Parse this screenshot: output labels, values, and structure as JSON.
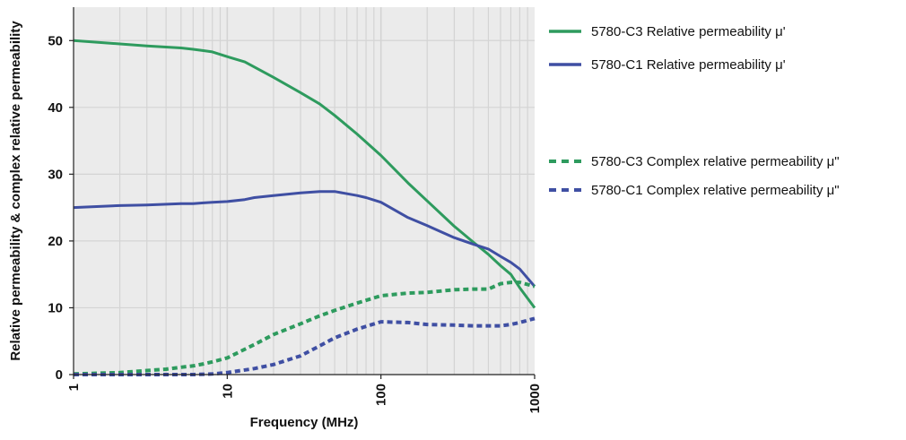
{
  "chart_data": {
    "type": "line",
    "title": "",
    "xlabel": "Frequency (MHz)",
    "ylabel": "Relative permeability & complex relative permeability",
    "xscale": "log",
    "xlim": [
      1,
      1000
    ],
    "ylim": [
      0,
      55
    ],
    "xticks": [
      1,
      10,
      100,
      1000
    ],
    "xtick_labels": [
      "1",
      "10",
      "100",
      "1000"
    ],
    "yticks": [
      0,
      10,
      20,
      30,
      40,
      50
    ],
    "ytick_labels": [
      "0",
      "10",
      "20",
      "30",
      "40",
      "50"
    ],
    "grid": true,
    "legend_position": "right",
    "colors": {
      "plot_background": "#ebebeb",
      "grid": "#d4d4d4",
      "c3": "#2e9b5e",
      "c1": "#3f4fa3"
    },
    "series": [
      {
        "name": "5780-C3 Relative permeability  μ'",
        "color": "#2e9b5e",
        "style": "solid",
        "x": [
          1,
          2,
          3,
          5,
          6,
          7,
          8,
          10,
          13,
          20,
          30,
          40,
          50,
          70,
          100,
          150,
          200,
          300,
          400,
          500,
          600,
          700,
          800,
          1000
        ],
        "y": [
          50,
          49.5,
          49.2,
          48.9,
          48.7,
          48.5,
          48.3,
          47.6,
          46.8,
          44.5,
          42.2,
          40.5,
          38.8,
          36,
          32.8,
          28.7,
          26,
          22.2,
          19.8,
          18,
          16.3,
          15,
          13,
          10
        ]
      },
      {
        "name": "5780-C1 Relative permeability  μ'",
        "color": "#3f4fa3",
        "style": "solid",
        "x": [
          1,
          2,
          3,
          5,
          6,
          7,
          8,
          10,
          13,
          15,
          20,
          30,
          40,
          50,
          70,
          80,
          100,
          150,
          200,
          300,
          400,
          500,
          600,
          700,
          800,
          1000
        ],
        "y": [
          25,
          25.3,
          25.4,
          25.6,
          25.6,
          25.7,
          25.8,
          25.9,
          26.2,
          26.5,
          26.8,
          27.2,
          27.4,
          27.4,
          26.8,
          26.5,
          25.8,
          23.5,
          22.3,
          20.5,
          19.5,
          18.8,
          17.7,
          16.8,
          15.8,
          13.2
        ]
      },
      {
        "name": "5780-C3 Complex relative permeability  μ\"",
        "color": "#2e9b5e",
        "style": "dashed",
        "x": [
          1,
          2,
          3,
          4,
          5,
          6,
          7,
          8,
          10,
          15,
          20,
          30,
          40,
          50,
          70,
          100,
          150,
          200,
          300,
          400,
          500,
          600,
          700,
          800,
          1000
        ],
        "y": [
          0.1,
          0.3,
          0.6,
          0.8,
          1.1,
          1.3,
          1.6,
          1.9,
          2.5,
          4.5,
          6,
          7.6,
          8.8,
          9.6,
          10.7,
          11.8,
          12.2,
          12.3,
          12.7,
          12.8,
          12.8,
          13.6,
          13.8,
          13.8,
          13.2
        ]
      },
      {
        "name": "5780-C1 Complex relative permeability  μ\"",
        "color": "#3f4fa3",
        "style": "dashed",
        "x": [
          1,
          2,
          4,
          6,
          8,
          10,
          15,
          20,
          30,
          40,
          50,
          70,
          100,
          150,
          200,
          300,
          400,
          500,
          600,
          700,
          800,
          1000
        ],
        "y": [
          0,
          0,
          0,
          0,
          0.1,
          0.3,
          0.9,
          1.5,
          2.8,
          4.3,
          5.5,
          6.8,
          7.9,
          7.8,
          7.5,
          7.4,
          7.3,
          7.3,
          7.3,
          7.5,
          7.8,
          8.4
        ]
      }
    ]
  }
}
